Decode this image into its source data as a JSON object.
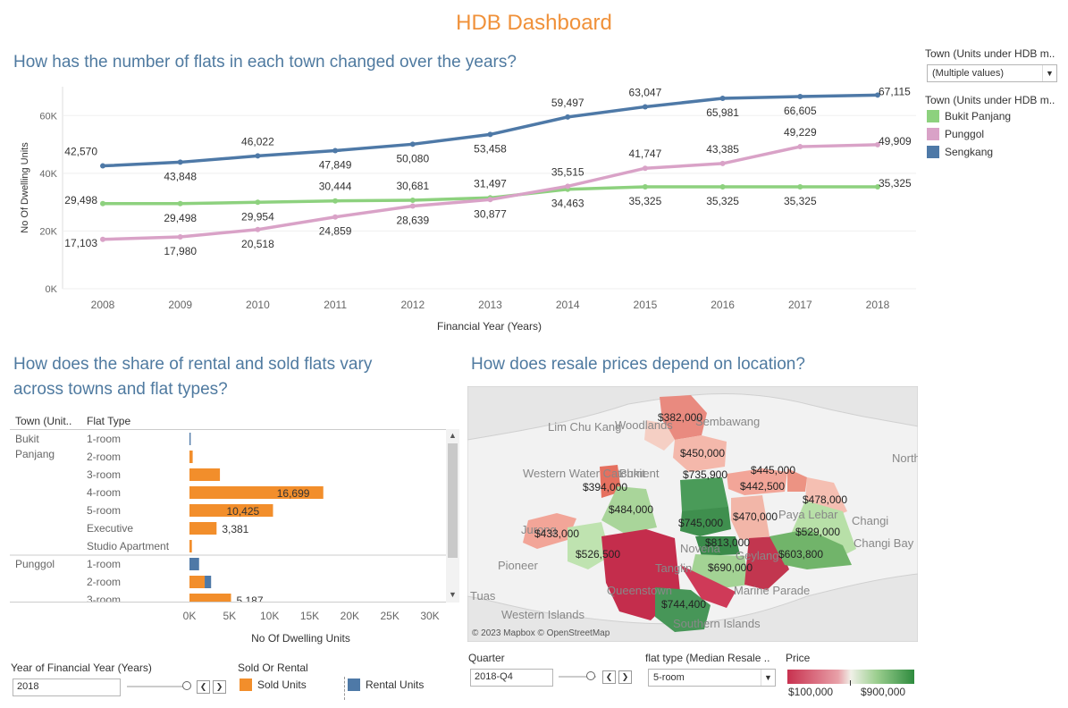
{
  "dashboard": {
    "title": "HDB Dashboard",
    "section1_title": "How has the number of flats in each town changed over the years?",
    "section2_title_line1": "How does the share of rental and sold flats vary",
    "section2_title_line2": "across towns and flat types?",
    "section3_title": "How does resale prices depend on location?"
  },
  "town_filter": {
    "label": "Town (Units under HDB m..",
    "value": "(Multiple values)"
  },
  "town_legend": {
    "label": "Town (Units under HDB m..",
    "items": [
      {
        "name": "Bukit Panjang",
        "color": "#8dd17e"
      },
      {
        "name": "Punggol",
        "color": "#d9a2c7"
      },
      {
        "name": "Sengkang",
        "color": "#4e79a7"
      }
    ]
  },
  "chart_data": [
    {
      "type": "line",
      "xlabel": "Financial Year (Years)",
      "ylabel": "No Of Dwelling Units",
      "ylim": [
        0,
        70000
      ],
      "yticks": [
        "0K",
        "20K",
        "40K",
        "60K"
      ],
      "x": [
        "2008",
        "2009",
        "2010",
        "2011",
        "2012",
        "2013",
        "2014",
        "2015",
        "2016",
        "2017",
        "2018"
      ],
      "series": [
        {
          "name": "Sengkang",
          "color": "#4e79a7",
          "values": [
            42570,
            43848,
            46022,
            47849,
            50080,
            53458,
            59497,
            63047,
            65981,
            66605,
            67115
          ],
          "labels": [
            "42,570",
            "43,848",
            "46,022",
            "47,849",
            "50,080",
            "53,458",
            "59,497",
            "63,047",
            "65,981",
            "66,605",
            "67,115"
          ]
        },
        {
          "name": "Bukit Panjang",
          "color": "#8dd17e",
          "values": [
            29498,
            29498,
            29954,
            30444,
            30681,
            31497,
            34463,
            35325,
            35325,
            35325,
            35325
          ],
          "labels": [
            "29,498",
            "29,498",
            "29,954",
            "30,444",
            "30,681",
            "31,497",
            "34,463",
            "35,325",
            "35,325",
            "35,325",
            "35,325"
          ]
        },
        {
          "name": "Punggol",
          "color": "#d9a2c7",
          "values": [
            17103,
            17980,
            20518,
            24859,
            28639,
            30877,
            35515,
            41747,
            43385,
            49229,
            49909
          ],
          "labels": [
            "17,103",
            "17,980",
            "20,518",
            "24,859",
            "28,639",
            "30,877",
            "35,515",
            "41,747",
            "43,385",
            "49,229",
            "49,909"
          ]
        }
      ]
    },
    {
      "type": "bar",
      "xlabel": "No Of Dwelling Units",
      "xticks": [
        "0K",
        "5K",
        "10K",
        "15K",
        "20K",
        "25K",
        "30K"
      ],
      "xlim": [
        0,
        30000
      ],
      "col_headers": [
        "Town (Unit..",
        "Flat Type"
      ],
      "groups": [
        {
          "town": "Bukit Panjang",
          "rows": [
            {
              "flat_type": "1-room",
              "sold": 0,
              "rental": 150,
              "label": ""
            },
            {
              "flat_type": "2-room",
              "sold": 400,
              "rental": 0,
              "label": ""
            },
            {
              "flat_type": "3-room",
              "sold": 3800,
              "rental": 0,
              "label": ""
            },
            {
              "flat_type": "4-room",
              "sold": 16699,
              "rental": 0,
              "label": "16,699"
            },
            {
              "flat_type": "5-room",
              "sold": 10425,
              "rental": 0,
              "label": "10,425"
            },
            {
              "flat_type": "Executive",
              "sold": 3381,
              "rental": 0,
              "label": "3,381"
            },
            {
              "flat_type": "Studio Apartment",
              "sold": 300,
              "rental": 0,
              "label": ""
            }
          ]
        },
        {
          "town": "Punggol",
          "rows": [
            {
              "flat_type": "1-room",
              "sold": 0,
              "rental": 1200,
              "label": ""
            },
            {
              "flat_type": "2-room",
              "sold": 1900,
              "rental": 800,
              "label": ""
            },
            {
              "flat_type": "3-room",
              "sold": 5187,
              "rental": 0,
              "label": "5,187"
            }
          ]
        }
      ]
    }
  ],
  "bar_controls": {
    "year_label": "Year of Financial Year (Years)",
    "year_value": "2018",
    "sold_or_rental_label": "Sold Or Rental",
    "sold_label": "Sold Units",
    "rental_label": "Rental Units",
    "sold_color": "#f28e2b",
    "rental_color": "#4e79a7"
  },
  "map": {
    "attribution": "© 2023 Mapbox © OpenStreetMap",
    "place_names": [
      "Lim Chu Kang",
      "Woodlands",
      "Sembawang",
      "Western Water Catchment",
      "Bukit",
      "Changi",
      "Changi Bay",
      "North-Eastern",
      "Pioneer",
      "Jurong",
      "Tuas",
      "Western Islands",
      "Tanglin",
      "Queenstown",
      "Novena",
      "Geylang",
      "Marine Parade",
      "Southern Islands",
      "Paya Lebar"
    ],
    "prices": [
      "$382,000",
      "$450,000",
      "$445,000",
      "$442,500",
      "$478,000",
      "$394,000",
      "$735,900",
      "$484,000",
      "$470,000",
      "$745,000",
      "$529,000",
      "$433,000",
      "$813,000",
      "$526,500",
      "$690,000",
      "$603,800",
      "$744,400"
    ]
  },
  "map_controls": {
    "quarter_label": "Quarter",
    "quarter_value": "2018-Q4",
    "flat_type_label": "flat type (Median Resale ..",
    "flat_type_value": "5-room",
    "price_label": "Price",
    "price_min": "$100,000",
    "price_max": "$900,000",
    "price_low_color": "#c8314f",
    "price_high_color": "#2e8b3e"
  }
}
